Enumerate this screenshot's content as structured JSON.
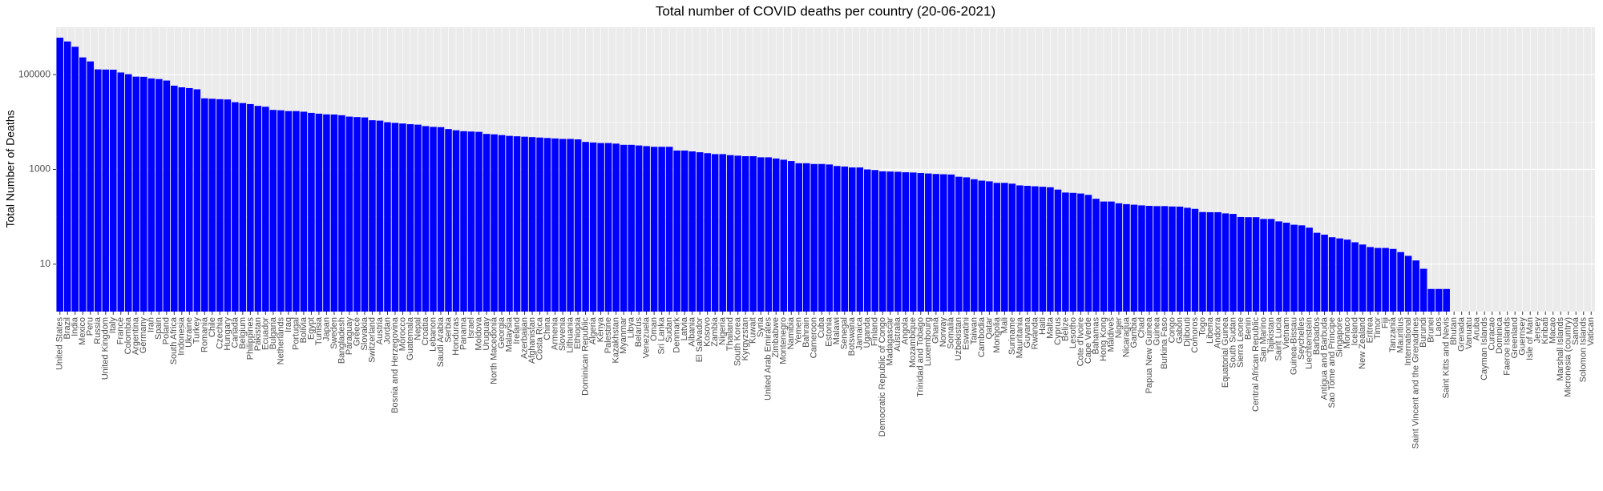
{
  "chart_data": {
    "type": "bar",
    "title": "Total number of COVID deaths per country (20-06-2021)",
    "y_label": "Total Number of Deaths",
    "color": "#0000ff",
    "log_y": true,
    "grid": true,
    "ylim": [
      1,
      1000000
    ],
    "yticks": [
      10,
      1000,
      100000
    ],
    "categories": [
      "United States",
      "Brazil",
      "India",
      "Mexico",
      "Peru",
      "Russia",
      "United Kingdom",
      "Italy",
      "France",
      "Colombia",
      "Argentina",
      "Germany",
      "Iran",
      "Spain",
      "Poland",
      "South Africa",
      "Indonesia",
      "Ukraine",
      "Turkey",
      "Romania",
      "Chile",
      "Czechia",
      "Hungary",
      "Canada",
      "Belgium",
      "Philippines",
      "Pakistan",
      "Ecuador",
      "Bulgaria",
      "Netherlands",
      "Iraq",
      "Portugal",
      "Bolivia",
      "Egypt",
      "Tunisia",
      "Japan",
      "Sweden",
      "Bangladesh",
      "Paraguay",
      "Greece",
      "Slovakia",
      "Switzerland",
      "Austria",
      "Jordan",
      "Bosnia and Herzegovina",
      "Morocco",
      "Guatemala",
      "Nepal",
      "Croatia",
      "Lebanon",
      "Saudi Arabia",
      "Serbia",
      "Honduras",
      "Panama",
      "Israel",
      "Moldova",
      "Uruguay",
      "North Macedonia",
      "Georgia",
      "Malaysia",
      "Ireland",
      "Azerbaijan",
      "Afghanistan",
      "Costa Rica",
      "China",
      "Armenia",
      "Slovenia",
      "Lithuania",
      "Ethiopia",
      "Dominican Republic",
      "Algeria",
      "Kenya",
      "Palestine",
      "Kazakhstan",
      "Myanmar",
      "Libya",
      "Belarus",
      "Venezuela",
      "Oman",
      "Sri Lanka",
      "Sudan",
      "Denmark",
      "Latvia",
      "Albania",
      "El Salvador",
      "Kosovo",
      "Zambia",
      "Nigeria",
      "Thailand",
      "South Korea",
      "Kyrgyzstan",
      "Kuwait",
      "Syria",
      "United Arab Emirates",
      "Zimbabwe",
      "Montenegro",
      "Namibia",
      "Yemen",
      "Bahrain",
      "Cameroon",
      "Cuba",
      "Estonia",
      "Malawi",
      "Senegal",
      "Botswana",
      "Jamaica",
      "Uganda",
      "Finland",
      "Democratic Republic of Congo",
      "Madagascar",
      "Australia",
      "Angola",
      "Mozambique",
      "Trinidad and Tobago",
      "Luxembourg",
      "Ghana",
      "Norway",
      "Somalia",
      "Uzbekistan",
      "Eswatini",
      "Taiwan",
      "Cambodia",
      "Qatar",
      "Mongolia",
      "Mali",
      "Suriname",
      "Mauritania",
      "Guyana",
      "Rwanda",
      "Haiti",
      "Malta",
      "Cyprus",
      "Belize",
      "Lesotho",
      "Cote d'Ivoire",
      "Cape Verde",
      "Bahamas",
      "Hong Kong",
      "Maldives",
      "Niger",
      "Nicaragua",
      "Gambia",
      "Chad",
      "Papua New Guinea",
      "Guinea",
      "Burkina Faso",
      "Congo",
      "Gabon",
      "Djibouti",
      "Comoros",
      "Togo",
      "Liberia",
      "Andorra",
      "Equatorial Guinea",
      "South Sudan",
      "Sierra Leone",
      "Benin",
      "Central African Republic",
      "San Marino",
      "Tajikistan",
      "Saint Lucia",
      "Vietnam",
      "Guinea-Bissau",
      "Seychelles",
      "Liechtenstein",
      "Barbados",
      "Antigua and Barbuda",
      "Sao Tome and Principe",
      "Singapore",
      "Monaco",
      "Iceland",
      "New Zealand",
      "Eritrea",
      "Timor",
      "Fiji",
      "Tanzania",
      "Mauritius",
      "International",
      "Saint Vincent and the Grenadines",
      "Burundi",
      "Brunei",
      "Laos",
      "Saint Kitts and Nevis",
      "Bhutan",
      "Grenada",
      "Vanuatu",
      "Aruba",
      "Cayman Islands",
      "Curacao",
      "Dominica",
      "Faeroe Islands",
      "Greenland",
      "Guernsey",
      "Isle of Man",
      "Jersey",
      "Kiribati",
      "Macao",
      "Marshall Islands",
      "Micronesia (country)",
      "Samoa",
      "Solomon Islands",
      "Vatican"
    ],
    "values": [
      602000,
      500800,
      386700,
      231000,
      190000,
      129000,
      128000,
      127000,
      111000,
      102000,
      90700,
      90000,
      83000,
      80600,
      75000,
      58500,
      54000,
      52000,
      49000,
      31600,
      31000,
      30300,
      29900,
      26200,
      25100,
      23900,
      21900,
      21000,
      18000,
      17700,
      17000,
      17000,
      16500,
      15600,
      15000,
      14500,
      14400,
      13900,
      13000,
      12700,
      12500,
      10900,
      10700,
      9900,
      9600,
      9300,
      9000,
      8800,
      8200,
      7900,
      7800,
      7100,
      6700,
      6400,
      6300,
      6200,
      5600,
      5500,
      5300,
      5100,
      5000,
      4900,
      4800,
      4700,
      4600,
      4500,
      4400,
      4400,
      4300,
      3800,
      3700,
      3600,
      3600,
      3500,
      3300,
      3300,
      3200,
      3100,
      3000,
      3000,
      3000,
      2500,
      2500,
      2400,
      2300,
      2200,
      2100,
      2100,
      2000,
      1950,
      1900,
      1900,
      1800,
      1800,
      1700,
      1600,
      1500,
      1350,
      1350,
      1300,
      1300,
      1270,
      1180,
      1150,
      1100,
      1100,
      1000,
      970,
      910,
      900,
      890,
      870,
      860,
      840,
      820,
      800,
      790,
      780,
      700,
      680,
      620,
      580,
      560,
      520,
      520,
      500,
      460,
      450,
      440,
      430,
      420,
      375,
      325,
      320,
      310,
      290,
      240,
      210,
      210,
      193,
      185,
      180,
      174,
      170,
      168,
      168,
      165,
      164,
      155,
      147,
      126,
      125,
      125,
      118,
      115,
      99,
      98,
      98,
      90,
      90,
      80,
      75,
      68,
      66,
      59,
      46,
      42,
      37,
      35,
      33,
      29,
      26,
      23,
      22,
      22,
      21,
      18,
      15,
      12,
      8,
      3,
      3,
      3,
      0,
      0,
      0,
      0,
      0,
      0,
      0,
      0,
      0,
      0,
      0,
      0,
      0,
      0,
      0,
      0,
      0,
      0,
      0
    ]
  }
}
